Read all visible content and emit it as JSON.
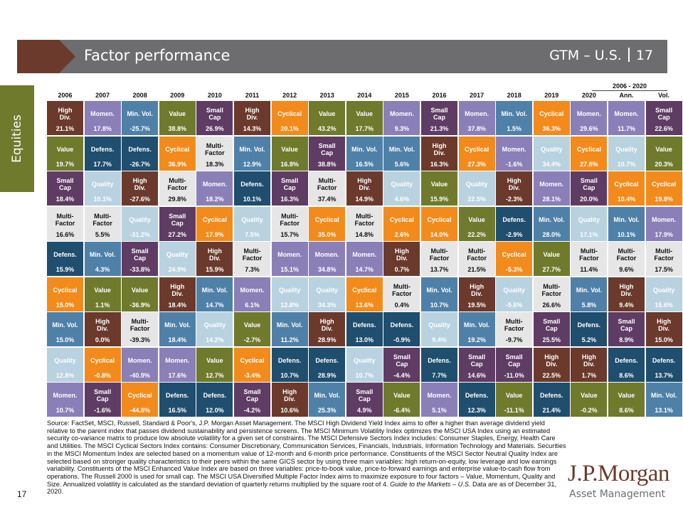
{
  "header": {
    "title": "Factor performance",
    "right_label": "GTM – U.S.",
    "page": "17"
  },
  "side_tab": {
    "label": "Equities"
  },
  "chart_data": {
    "type": "table",
    "summary_header": "2006 - 2020",
    "columns": [
      "2006",
      "2007",
      "2008",
      "2009",
      "2010",
      "2011",
      "2012",
      "2013",
      "2014",
      "2015",
      "2016",
      "2017",
      "2018",
      "2019",
      "2020",
      "Ann.",
      "Vol."
    ],
    "rows": [
      [
        [
          "High Div.",
          "21.1%"
        ],
        [
          "Momen.",
          "17.8%"
        ],
        [
          "Min. Vol.",
          "-25.7%"
        ],
        [
          "Value",
          "38.8%"
        ],
        [
          "Small Cap",
          "26.9%"
        ],
        [
          "High Div.",
          "14.3%"
        ],
        [
          "Cyclical",
          "20.1%"
        ],
        [
          "Value",
          "43.2%"
        ],
        [
          "Value",
          "17.7%"
        ],
        [
          "Momen.",
          "9.3%"
        ],
        [
          "Small Cap",
          "21.3%"
        ],
        [
          "Momen.",
          "37.8%"
        ],
        [
          "Min. Vol.",
          "1.5%"
        ],
        [
          "Cyclical",
          "36.3%"
        ],
        [
          "Momen.",
          "29.6%"
        ],
        [
          "Momen.",
          "11.7%"
        ],
        [
          "Small Cap",
          "22.6%"
        ]
      ],
      [
        [
          "Value",
          "19.7%"
        ],
        [
          "Defens.",
          "17.7%"
        ],
        [
          "Defens.",
          "-26.7%"
        ],
        [
          "Cyclical",
          "36.9%"
        ],
        [
          "Multi-Factor",
          "18.3%"
        ],
        [
          "Min. Vol.",
          "12.9%"
        ],
        [
          "Value",
          "16.8%"
        ],
        [
          "Small Cap",
          "38.8%"
        ],
        [
          "Min. Vol.",
          "16.5%"
        ],
        [
          "Min. Vol.",
          "5.6%"
        ],
        [
          "High Div.",
          "16.3%"
        ],
        [
          "Cyclical",
          "27.3%"
        ],
        [
          "Momen.",
          "-1.6%"
        ],
        [
          "Quality",
          "34.4%"
        ],
        [
          "Cyclical",
          "27.8%"
        ],
        [
          "Quality",
          "10.7%"
        ],
        [
          "Value",
          "20.3%"
        ]
      ],
      [
        [
          "Small Cap",
          "18.4%"
        ],
        [
          "Quality",
          "10.1%"
        ],
        [
          "High Div.",
          "-27.6%"
        ],
        [
          "Multi-Factor",
          "29.8%"
        ],
        [
          "Momen.",
          "18.2%"
        ],
        [
          "Defens.",
          "10.1%"
        ],
        [
          "Small Cap",
          "16.3%"
        ],
        [
          "Multi-Factor",
          "37.4%"
        ],
        [
          "High Div.",
          "14.9%"
        ],
        [
          "Quality",
          "4.6%"
        ],
        [
          "Value",
          "15.9%"
        ],
        [
          "Quality",
          "22.5%"
        ],
        [
          "High Div.",
          "-2.3%"
        ],
        [
          "Momen.",
          "28.1%"
        ],
        [
          "Small Cap",
          "20.0%"
        ],
        [
          "Cyclical",
          "10.4%"
        ],
        [
          "Cyclical",
          "19.8%"
        ]
      ],
      [
        [
          "Multi-Factor",
          "16.6%"
        ],
        [
          "Multi-Factor",
          "5.5%"
        ],
        [
          "Quality",
          "-31.2%"
        ],
        [
          "Small Cap",
          "27.2%"
        ],
        [
          "Cyclical",
          "17.9%"
        ],
        [
          "Quality",
          "7.5%"
        ],
        [
          "Multi-Factor",
          "15.7%"
        ],
        [
          "Cyclical",
          "35.0%"
        ],
        [
          "Multi-Factor",
          "14.8%"
        ],
        [
          "Cyclical",
          "2.6%"
        ],
        [
          "Cyclical",
          "14.0%"
        ],
        [
          "Value",
          "22.2%"
        ],
        [
          "Defens.",
          "-2.9%"
        ],
        [
          "Min. Vol.",
          "28.0%"
        ],
        [
          "Quality",
          "17.1%"
        ],
        [
          "Min. Vol.",
          "10.1%"
        ],
        [
          "Momen.",
          "17.9%"
        ]
      ],
      [
        [
          "Defens.",
          "15.9%"
        ],
        [
          "Min. Vol.",
          "4.3%"
        ],
        [
          "Small Cap",
          "-33.8%"
        ],
        [
          "Quality",
          "24.9%"
        ],
        [
          "High Div.",
          "15.9%"
        ],
        [
          "Multi-Factor",
          "7.3%"
        ],
        [
          "Momen.",
          "15.1%"
        ],
        [
          "Momen.",
          "34.8%"
        ],
        [
          "Momen.",
          "14.7%"
        ],
        [
          "High Div.",
          "0.7%"
        ],
        [
          "Multi-Factor",
          "13.7%"
        ],
        [
          "Multi-Factor",
          "21.5%"
        ],
        [
          "Cyclical",
          "-5.3%"
        ],
        [
          "Value",
          "27.7%"
        ],
        [
          "Multi-Factor",
          "11.4%"
        ],
        [
          "Multi-Factor",
          "9.6%"
        ],
        [
          "Multi-Factor",
          "17.5%"
        ]
      ],
      [
        [
          "Cyclical",
          "15.0%"
        ],
        [
          "Value",
          "1.1%"
        ],
        [
          "Value",
          "-36.9%"
        ],
        [
          "High Div.",
          "18.4%"
        ],
        [
          "Min. Vol.",
          "14.7%"
        ],
        [
          "Momen.",
          "6.1%"
        ],
        [
          "Quality",
          "12.8%"
        ],
        [
          "Quality",
          "34.3%"
        ],
        [
          "Cyclical",
          "13.6%"
        ],
        [
          "Multi-Factor",
          "0.4%"
        ],
        [
          "Min. Vol.",
          "10.7%"
        ],
        [
          "High Div.",
          "19.5%"
        ],
        [
          "Quality",
          "-5.6%"
        ],
        [
          "Multi-Factor",
          "26.6%"
        ],
        [
          "Min. Vol.",
          "5.8%"
        ],
        [
          "High Div.",
          "9.4%"
        ],
        [
          "Quality",
          "15.6%"
        ]
      ],
      [
        [
          "Min. Vol.",
          "15.0%"
        ],
        [
          "High Div.",
          "0.0%"
        ],
        [
          "Multi-Factor",
          "-39.3%"
        ],
        [
          "Min. Vol.",
          "18.4%"
        ],
        [
          "Quality",
          "14.2%"
        ],
        [
          "Value",
          "-2.7%"
        ],
        [
          "Min. Vol.",
          "11.2%"
        ],
        [
          "High Div.",
          "28.9%"
        ],
        [
          "Defens.",
          "13.0%"
        ],
        [
          "Defens.",
          "-0.9%"
        ],
        [
          "Quality",
          "9.4%"
        ],
        [
          "Min. Vol.",
          "19.2%"
        ],
        [
          "Multi-Factor",
          "-9.7%"
        ],
        [
          "Small Cap",
          "25.5%"
        ],
        [
          "Defens.",
          "5.2%"
        ],
        [
          "Small Cap",
          "8.9%"
        ],
        [
          "High Div.",
          "15.0%"
        ]
      ],
      [
        [
          "Quality",
          "12.8%"
        ],
        [
          "Cyclical",
          "-0.8%"
        ],
        [
          "Momen.",
          "-40.9%"
        ],
        [
          "Momen.",
          "17.6%"
        ],
        [
          "Value",
          "12.7%"
        ],
        [
          "Cyclical",
          "-3.4%"
        ],
        [
          "Defens.",
          "10.7%"
        ],
        [
          "Defens.",
          "28.9%"
        ],
        [
          "Quality",
          "10.7%"
        ],
        [
          "Small Cap",
          "-4.4%"
        ],
        [
          "Defens.",
          "7.7%"
        ],
        [
          "Small Cap",
          "14.6%"
        ],
        [
          "Small Cap",
          "-11.0%"
        ],
        [
          "High Div.",
          "22.5%"
        ],
        [
          "High Div.",
          "1.7%"
        ],
        [
          "Defens.",
          "8.6%"
        ],
        [
          "Defens.",
          "13.7%"
        ]
      ],
      [
        [
          "Momen.",
          "10.7%"
        ],
        [
          "Small Cap",
          "-1.6%"
        ],
        [
          "Cyclical",
          "-44.8%"
        ],
        [
          "Defens.",
          "16.5%"
        ],
        [
          "Defens.",
          "12.0%"
        ],
        [
          "Small Cap",
          "-4.2%"
        ],
        [
          "High Div.",
          "10.6%"
        ],
        [
          "Min. Vol.",
          "25.3%"
        ],
        [
          "Small Cap",
          "4.9%"
        ],
        [
          "Value",
          "-6.4%"
        ],
        [
          "Momen.",
          "5.1%"
        ],
        [
          "Defens.",
          "12.3%"
        ],
        [
          "Value",
          "-11.1%"
        ],
        [
          "Defens.",
          "21.4%"
        ],
        [
          "Value",
          "-0.2%"
        ],
        [
          "Value",
          "8.6%"
        ],
        [
          "Min. Vol.",
          "13.1%"
        ]
      ]
    ],
    "factor_colors": {
      "High Div.": "#6b3a2c",
      "Momen.": "#8b7fb8",
      "Min. Vol.": "#4f81a8",
      "Value": "#6f7a2c",
      "Small Cap": "#5f3c64",
      "Cyclical": "#f28b1b",
      "Defens.": "#1f4e6e",
      "Multi-Factor": "#e6e6e6",
      "Quality": "#b8d2e0"
    }
  },
  "source_text": "Source: FactSet, MSCI, Russell, Standard & Poor's, J.P. Morgan Asset Management. The MSCI High Dividend Yield Index aims to offer a higher than average dividend yield relative to the parent index that passes dividend sustainability and persistence screens. The MSCI Minimum Volatility Index optimizes the MSCI USA Index using an estimated security co-variance matrix to produce low absolute volatility for a given set of constraints. The MSCI Defensive Sectors Index includes: Consumer Staples, Energy, Health Care and Utilities. The MSCI Cyclical Sectors Index contains: Consumer Discretionary, Communication Services, Financials, Industrials, Information Technology and Materials. Securities in the MSCI Momentum Index are selected based on a momentum value of 12-month and 6-month price performance. Constituents of the MSCI Sector Neutral Quality Index are selected based on stronger quality characteristics to their peers within the same GICS sector by using three main variables: high return-on-equity, low leverage and low earnings variability. Constituents of the MSCI Enhanced Value Index are based on three variables: price-to-book value, price-to-forward earnings and enterprise value-to-cash flow from operations. The Russell 2000 is used for small cap. The MSCI USA Diversified Multiple Factor Index aims to maximize exposure to four factors – Value, Momentum, Quality and Size. Annualized volatility is calculated as the standard deviation of quarterly returns multiplied by the square root of 4.",
  "source_italic": "Guide to the Markets – U.S.",
  "source_tail": " Data are as of December 31, 2020.",
  "footer": {
    "page_number": "17",
    "logo_line1": "J.P.Morgan",
    "logo_line2": "Asset Management"
  }
}
